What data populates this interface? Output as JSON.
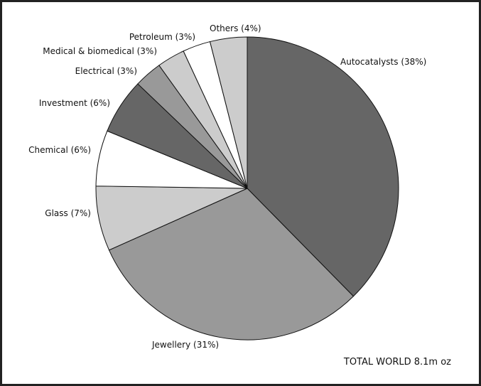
{
  "chart_data": {
    "type": "pie",
    "start_angle_deg": 0,
    "direction": "clockwise",
    "slices": [
      {
        "label": "Autocatalysts (38%)",
        "value": 38,
        "color": "#666666"
      },
      {
        "label": "Jewellery (31%)",
        "value": 31,
        "color": "#999999"
      },
      {
        "label": "Glass (7%)",
        "value": 7,
        "color": "#cccccc"
      },
      {
        "label": "Chemical (6%)",
        "value": 6,
        "color": "#ffffff"
      },
      {
        "label": "Investment (6%)",
        "value": 6,
        "color": "#666666"
      },
      {
        "label": "Electrical (3%)",
        "value": 3,
        "color": "#999999"
      },
      {
        "label": "Medical & biomedical (3%)",
        "value": 3,
        "color": "#cccccc"
      },
      {
        "label": "Petroleum (3%)",
        "value": 3,
        "color": "#ffffff"
      },
      {
        "label": "Others (4%)",
        "value": 4,
        "color": "#cccccc"
      }
    ],
    "footnote": "TOTAL WORLD 8.1m oz"
  }
}
